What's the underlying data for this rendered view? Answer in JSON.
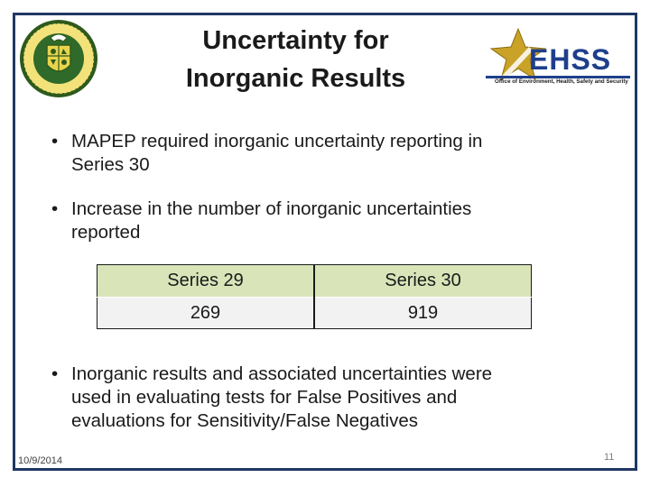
{
  "slide": {
    "title_line1": "Uncertainty for",
    "title_line2": "Inorganic Results",
    "bullets": [
      {
        "line1": "MAPEP required inorganic uncertainty reporting in",
        "line2": "Series 30"
      },
      {
        "line1": "Increase in the number of inorganic uncertainties",
        "line2": "reported"
      },
      {
        "line1": "Inorganic results and associated uncertainties were",
        "line2": "used in evaluating tests for False Positives and",
        "line3": "evaluations for Sensitivity/False Negatives"
      }
    ],
    "bullet_glyph": "•",
    "table": {
      "headers": [
        "Series 29",
        "Series 30"
      ],
      "values": [
        "269",
        "919"
      ]
    },
    "footer_date": "10/9/2014",
    "page_number": "11"
  },
  "logos": {
    "left": "doe-seal-icon",
    "right_text": "EHSS",
    "right_subtitle": "Office of Environment, Health, Safety and Security"
  },
  "colors": {
    "frame": "#1f3864",
    "table_header_bg": "#d9e4b9",
    "table_body_bg": "#f2f2f2",
    "ehss_blue": "#1f3f8c",
    "star_gold": "#b8860b"
  }
}
